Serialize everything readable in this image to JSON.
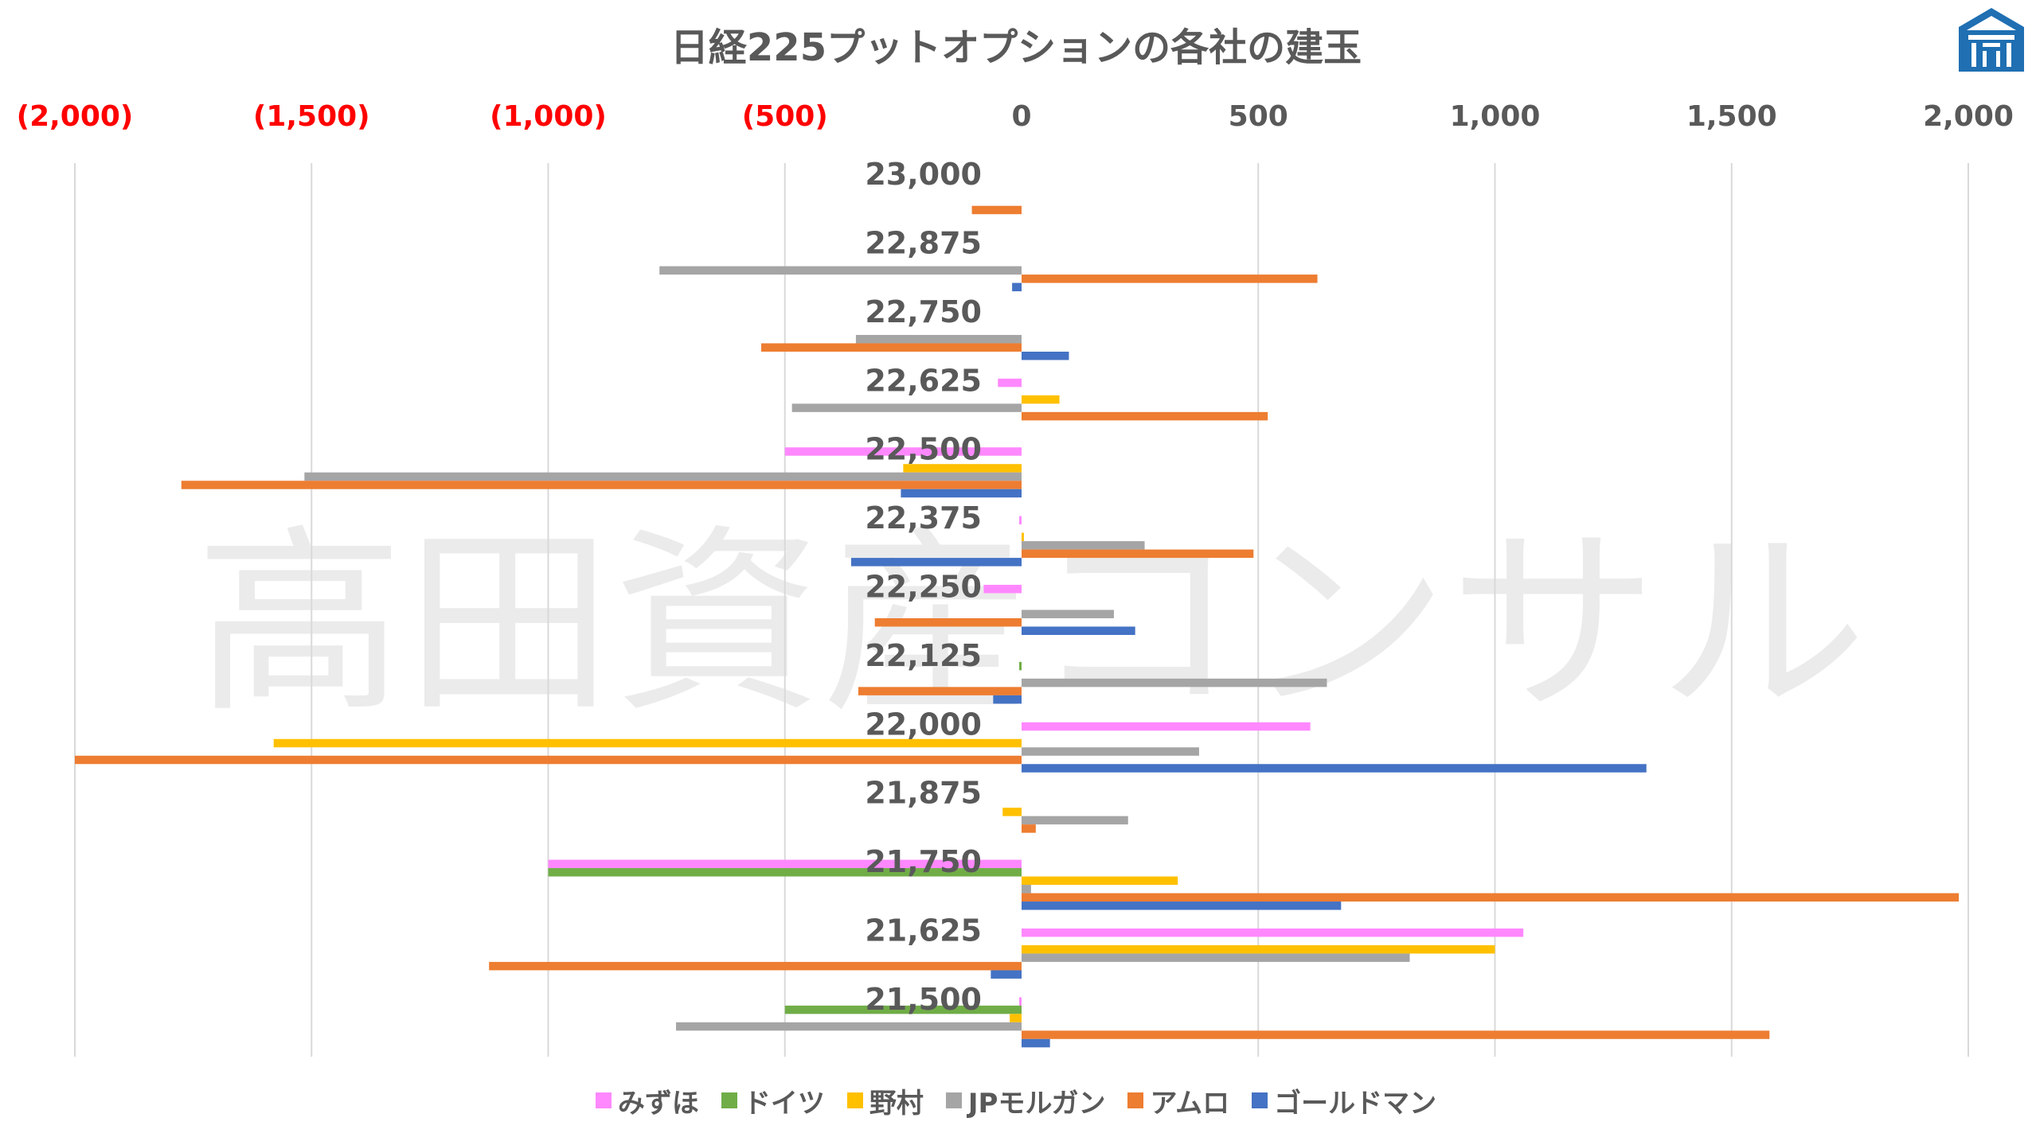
{
  "watermark": "高田資産コンサル",
  "colors": {
    "neg_tick": "#ff0000",
    "pos_tick": "#595959",
    "grid": "#d9d9d9",
    "logo": "#1f6fb2"
  },
  "logo_icon": "castle-gate-icon",
  "chart_data": {
    "type": "bar",
    "orientation": "horizontal",
    "title": "日経225プットオプションの各社の建玉",
    "xlim": [
      -2000,
      2000
    ],
    "x_ticks": [
      {
        "value": -2000,
        "label": "(2,000)"
      },
      {
        "value": -1500,
        "label": "(1,500)"
      },
      {
        "value": -1000,
        "label": "(1,000)"
      },
      {
        "value": -500,
        "label": "(500)"
      },
      {
        "value": 0,
        "label": "0"
      },
      {
        "value": 500,
        "label": "500"
      },
      {
        "value": 1000,
        "label": "1,000"
      },
      {
        "value": 1500,
        "label": "1,500"
      },
      {
        "value": 2000,
        "label": "2,000"
      }
    ],
    "categories": [
      "23,000",
      "22,875",
      "22,750",
      "22,625",
      "22,500",
      "22,375",
      "22,250",
      "22,125",
      "22,000",
      "21,875",
      "21,750",
      "21,625",
      "21,500"
    ],
    "legend_position": "bottom",
    "grid": true,
    "series": [
      {
        "name": "みずほ",
        "color": "#ff88ff",
        "values": [
          0,
          0,
          0,
          -50,
          -500,
          -5,
          -80,
          0,
          610,
          0,
          -1000,
          1060,
          -5
        ]
      },
      {
        "name": "ドイツ",
        "color": "#70ad47",
        "values": [
          0,
          0,
          0,
          0,
          0,
          0,
          0,
          -5,
          0,
          0,
          -1000,
          0,
          -500
        ]
      },
      {
        "name": "野村",
        "color": "#ffc000",
        "values": [
          0,
          0,
          0,
          80,
          -250,
          5,
          0,
          0,
          -1580,
          -40,
          330,
          1000,
          -25
        ]
      },
      {
        "name": "JPモルガン",
        "color": "#a5a5a5",
        "values": [
          0,
          -765,
          -350,
          -485,
          -1515,
          260,
          195,
          645,
          375,
          225,
          20,
          820,
          -730
        ]
      },
      {
        "name": "アムロ",
        "color": "#ed7d31",
        "values": [
          -105,
          625,
          -550,
          520,
          -1775,
          490,
          -310,
          -345,
          -2000,
          30,
          1980,
          -1125,
          1580
        ]
      },
      {
        "name": "ゴールドマン",
        "color": "#4472c4",
        "values": [
          0,
          -20,
          100,
          0,
          -255,
          -360,
          240,
          -60,
          1320,
          0,
          675,
          -65,
          60
        ]
      }
    ]
  }
}
